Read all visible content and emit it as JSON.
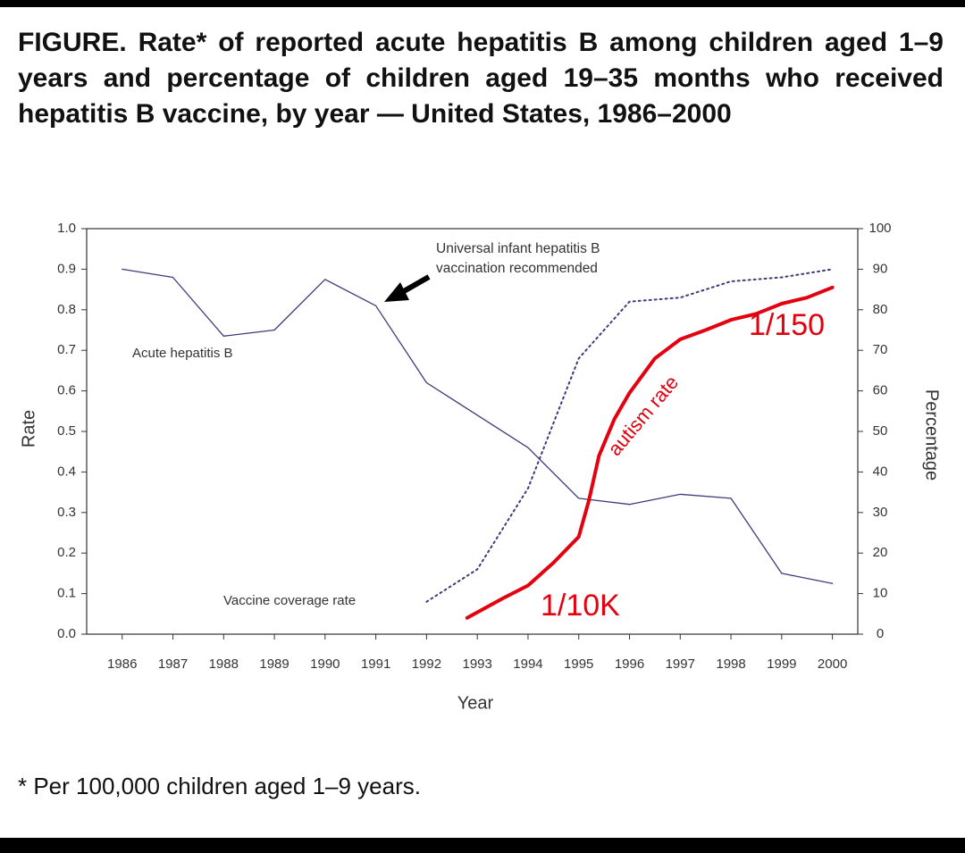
{
  "chart_data": {
    "type": "line",
    "title": "FIGURE. Rate* of reported acute hepatitis B among children aged 1–9 years and percentage of children aged 19–35 months who received hepatitis B vaccine, by year — United States, 1986–2000",
    "footnote": "* Per 100,000 children aged 1–9 years.",
    "xlabel": "Year",
    "ylabel": "Rate",
    "y2label": "Percentage",
    "x": [
      1986,
      1987,
      1988,
      1989,
      1990,
      1991,
      1992,
      1993,
      1994,
      1995,
      1996,
      1997,
      1998,
      1999,
      2000
    ],
    "xlim": [
      1985.3,
      2000.5
    ],
    "xticks": [
      1986,
      1987,
      1988,
      1989,
      1990,
      1991,
      1992,
      1993,
      1994,
      1995,
      1996,
      1997,
      1998,
      1999,
      2000
    ],
    "ylim": [
      0,
      1
    ],
    "yticks": [
      {
        "value": 0,
        "label": "0.0"
      },
      0.1,
      0.2,
      0.3,
      0.4,
      0.5,
      0.6,
      0.7,
      0.8,
      0.9,
      {
        "value": 1,
        "label": "1.0"
      }
    ],
    "y2lim": [
      0,
      100
    ],
    "y2ticks": [
      0,
      10,
      20,
      30,
      40,
      50,
      60,
      70,
      80,
      90,
      100
    ],
    "series": [
      {
        "name": "Acute hepatitis B",
        "color": "#3c3c78",
        "style": "solid",
        "values": [
          0.9,
          0.88,
          0.735,
          0.75,
          0.875,
          0.81,
          0.62,
          0.54,
          0.46,
          0.335,
          0.32,
          0.345,
          0.335,
          0.15,
          0.125
        ]
      },
      {
        "name": "Vaccine coverage rate",
        "color": "#3c3c78",
        "style": "dotted",
        "axis": "y2",
        "values": [
          null,
          null,
          null,
          null,
          null,
          null,
          8,
          16,
          36,
          68,
          82,
          83,
          87,
          88,
          90
        ]
      },
      {
        "name": "autism rate",
        "color": "#e3000f",
        "style": "solid",
        "axis": "y2",
        "x": [
          1992.8,
          1993.5,
          1994,
          1994.5,
          1995,
          1995.2,
          1995.4,
          1995.7,
          1996,
          1996.5,
          1997,
          1997.5,
          1998,
          1998.5,
          1999,
          1999.5,
          2000
        ],
        "values": [
          4,
          8.8,
          12,
          17.6,
          24,
          33,
          44,
          53,
          59.5,
          68,
          72.7,
          75,
          77.5,
          79,
          81.5,
          83,
          85.5
        ]
      }
    ],
    "annotations": [
      "Universal infant hepatitis B vaccination recommended",
      "1/10K",
      "1/150"
    ]
  }
}
